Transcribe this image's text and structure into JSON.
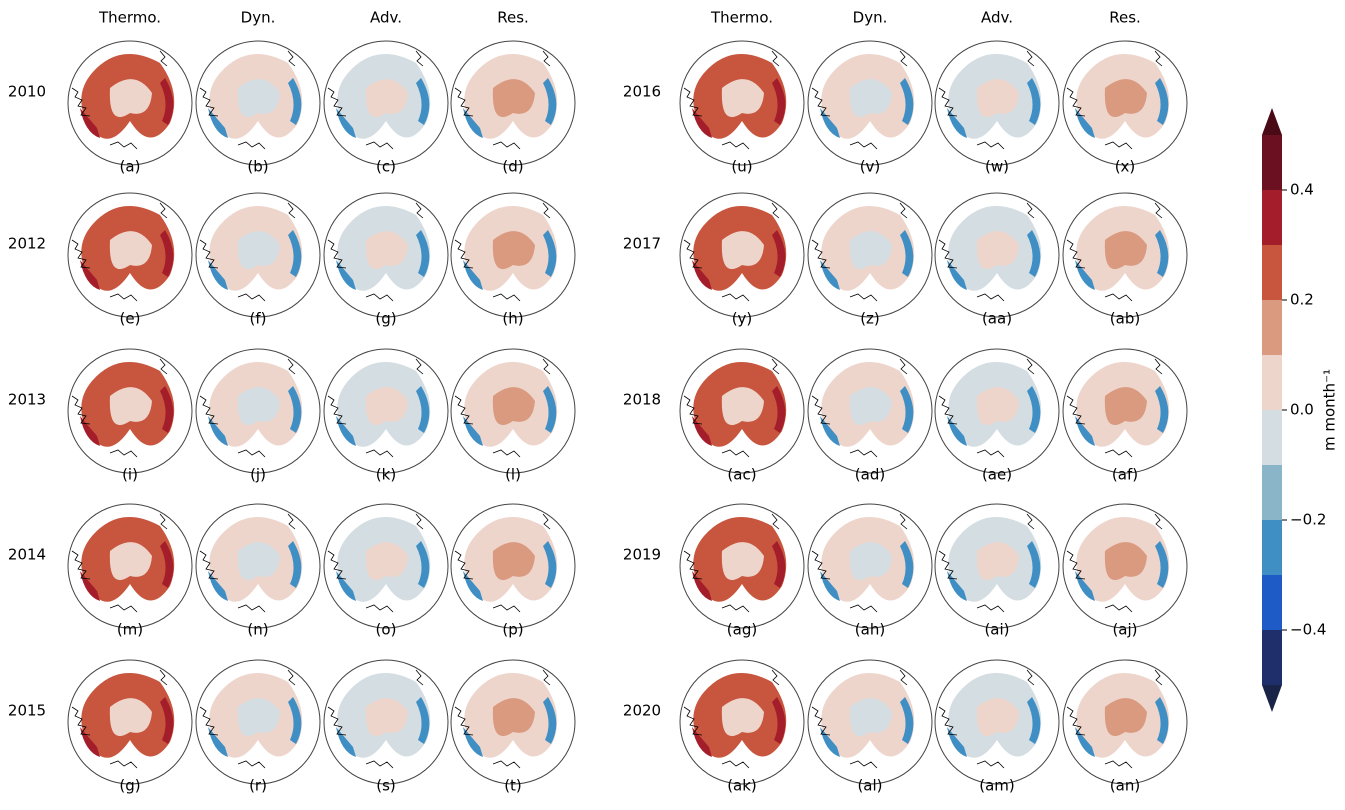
{
  "columns": [
    "Thermo.",
    "Dyn.",
    "Adv.",
    "Res.",
    "Thermo.",
    "Dyn.",
    "Adv.",
    "Res."
  ],
  "rows": [
    "2010",
    "2012",
    "2013",
    "2014",
    "2015",
    "2016",
    "2017",
    "2018",
    "2019",
    "2020"
  ],
  "panels": [
    [
      "(a)",
      "(b)",
      "(c)",
      "(d)"
    ],
    [
      "(e)",
      "(f)",
      "(g)",
      "(h)"
    ],
    [
      "(i)",
      "(j)",
      "(k)",
      "(l)"
    ],
    [
      "(m)",
      "(n)",
      "(o)",
      "(p)"
    ],
    [
      "(g)",
      "(r)",
      "(s)",
      "(t)"
    ],
    [
      "(u)",
      "(v)",
      "(w)",
      "(x)"
    ],
    [
      "(y)",
      "(z)",
      "(aa)",
      "(ab)"
    ],
    [
      "(ac)",
      "(ad)",
      "(ae)",
      "(af)"
    ],
    [
      "(ag)",
      "(ah)",
      "(ai)",
      "(aj)"
    ],
    [
      "(ak)",
      "(al)",
      "(am)",
      "(an)"
    ]
  ],
  "colorbar": {
    "label": "m month⁻¹",
    "lim": [
      -0.5,
      0.5
    ],
    "levels": [
      -0.5,
      -0.4,
      -0.3,
      -0.2,
      -0.1,
      0,
      0.1,
      0.2,
      0.3,
      0.4,
      0.5
    ],
    "colors": [
      "#1f2f6b",
      "#1e5bc6",
      "#3f8fc4",
      "#8ab5c9",
      "#d3dde2",
      "#eed5cc",
      "#d99a80",
      "#c8553d",
      "#a31e2a",
      "#6b1020"
    ],
    "ticks": [
      {
        "value": -0.4,
        "label": "−0.4"
      },
      {
        "value": -0.2,
        "label": "−0.2"
      },
      {
        "value": 0,
        "label": "0.0"
      },
      0.2,
      0.4
    ]
  }
}
